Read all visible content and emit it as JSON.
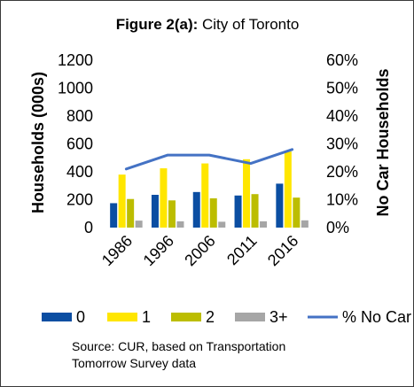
{
  "chart_data": {
    "type": "bar",
    "title_bold": "Figure 2(a):",
    "title_rest": " City of Toronto",
    "categories": [
      "1986",
      "1996",
      "2006",
      "2011",
      "2016"
    ],
    "ylabel": "Households (000s)",
    "y2label": "No Car Households",
    "ylim": [
      0,
      1200
    ],
    "y_ticks": [
      "0",
      "200",
      "400",
      "600",
      "800",
      "1000",
      "1200"
    ],
    "y2lim": [
      0,
      0.6
    ],
    "y2_ticks": [
      "0%",
      "10%",
      "20%",
      "30%",
      "40%",
      "50%",
      "60%"
    ],
    "series": [
      {
        "name": "0",
        "color": "#0b4ea2",
        "values": [
          175,
          235,
          255,
          230,
          315
        ]
      },
      {
        "name": "1",
        "color": "#ffe600",
        "values": [
          380,
          425,
          460,
          490,
          545
        ]
      },
      {
        "name": "2",
        "color": "#bcbd00",
        "values": [
          205,
          195,
          210,
          240,
          215
        ]
      },
      {
        "name": "3+",
        "color": "#a6a6a6",
        "values": [
          50,
          45,
          42,
          45,
          52
        ]
      }
    ],
    "line_series": {
      "name": "% No Car",
      "color": "#4472c4",
      "values": [
        0.21,
        0.26,
        0.26,
        0.23,
        0.28
      ]
    },
    "legend_position": "bottom",
    "grid": false,
    "source_lines": [
      "Source: CUR, based on Transportation",
      "Tomorrow Survey data"
    ]
  }
}
